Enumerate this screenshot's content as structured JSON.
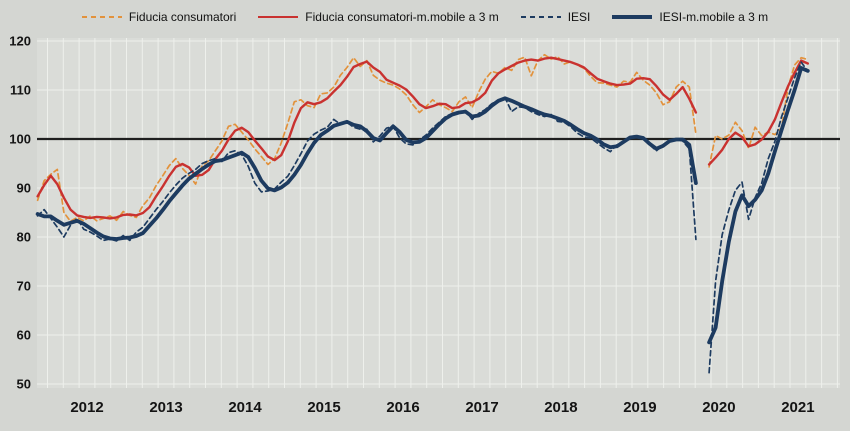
{
  "legend": {
    "items": [
      {
        "label": "Fiducia consumatori"
      },
      {
        "label": "Fiducia consumatori-m.mobile a 3 m"
      },
      {
        "label": "IESI"
      },
      {
        "label": "IESI-m.mobile a 3 m"
      }
    ]
  },
  "colors": {
    "background": "#d4d6d2",
    "plot_background": "#dadcd8",
    "gridline": "#eef0ec",
    "reference_line": "#1f1f1f",
    "tick_text": "#141414"
  },
  "chart_data": {
    "type": "line",
    "title": "",
    "xlabel": "",
    "ylabel": "",
    "x_start": {
      "year": 2011,
      "month": 11
    },
    "x_points_monthly": 118,
    "x_tick_labels": [
      "2012",
      "2013",
      "2014",
      "2015",
      "2016",
      "2017",
      "2018",
      "2019",
      "2020",
      "2021"
    ],
    "y_ticks": [
      50,
      60,
      70,
      80,
      90,
      100,
      110,
      120
    ],
    "ylim": [
      50,
      120
    ],
    "reference_line": 100,
    "grid": true,
    "legend_position": "top",
    "series": [
      {
        "name": "Fiducia consumatori",
        "color": "#e2923c",
        "style": "dashed",
        "width": 1.7,
        "values": [
          87.5,
          91.5,
          92.8,
          93.8,
          85.0,
          83.2,
          84.0,
          83.3,
          84.3,
          83.3,
          83.8,
          84.3,
          83.4,
          85.2,
          84.4,
          84.0,
          86.4,
          88.0,
          90.5,
          92.5,
          94.6,
          96.0,
          94.0,
          92.6,
          90.8,
          94.6,
          95.6,
          97.6,
          99.6,
          102.6,
          103.0,
          101.4,
          99.8,
          98.0,
          96.4,
          94.8,
          96.0,
          99.2,
          103.2,
          107.6,
          108.0,
          106.8,
          106.4,
          109.2,
          109.4,
          110.6,
          113.0,
          114.6,
          116.6,
          114.8,
          116.0,
          113.0,
          112.0,
          111.4,
          111.0,
          110.2,
          109.0,
          107.0,
          105.4,
          106.6,
          108.0,
          107.0,
          106.4,
          105.6,
          107.6,
          108.6,
          106.4,
          109.6,
          112.2,
          113.8,
          113.4,
          114.6,
          114.0,
          116.2,
          116.7,
          112.9,
          116.0,
          117.2,
          116.3,
          116.8,
          115.3,
          115.8,
          115.1,
          114.4,
          112.8,
          111.5,
          111.4,
          111.0,
          110.6,
          111.8,
          111.6,
          113.6,
          112.0,
          111.0,
          109.4,
          107.0,
          107.6,
          110.6,
          111.8,
          110.6,
          101.0,
          null,
          94.3,
          100.7,
          100.0,
          100.8,
          103.4,
          101.7,
          98.1,
          102.4,
          100.7,
          101.4,
          100.9,
          102.3,
          110.6,
          115.1,
          116.6,
          116.2
        ]
      },
      {
        "name": "Fiducia consumatori-m.mobile a 3 m",
        "color": "#c93230",
        "style": "solid",
        "width": 2.4,
        "values": [
          88.3,
          90.6,
          92.5,
          90.8,
          88.0,
          85.6,
          84.4,
          84.1,
          83.9,
          84.1,
          84.0,
          83.8,
          84.0,
          84.5,
          84.6,
          84.4,
          84.9,
          86.1,
          88.3,
          90.3,
          92.5,
          94.3,
          94.9,
          94.2,
          92.5,
          92.7,
          93.7,
          95.9,
          97.6,
          99.9,
          101.7,
          102.3,
          101.4,
          99.7,
          98.1,
          96.4,
          95.7,
          96.7,
          99.5,
          103.3,
          106.3,
          107.5,
          107.1,
          107.5,
          108.3,
          109.7,
          111.0,
          112.7,
          114.7,
          115.3,
          115.8,
          114.6,
          113.7,
          112.1,
          111.5,
          110.9,
          110.1,
          108.7,
          107.1,
          106.3,
          106.7,
          107.2,
          107.1,
          106.3,
          106.5,
          107.3,
          107.5,
          108.2,
          109.4,
          111.9,
          113.4,
          114.2,
          114.9,
          115.6,
          116.0,
          116.2,
          116.0,
          116.4,
          116.6,
          116.3,
          116.0,
          115.7,
          115.2,
          114.6,
          113.4,
          112.3,
          111.8,
          111.3,
          111.0,
          111.1,
          111.3,
          112.3,
          112.4,
          112.2,
          110.8,
          109.1,
          108.0,
          109.2,
          110.6,
          108.2,
          105.4,
          null,
          94.8,
          96.2,
          97.8,
          100.0,
          101.3,
          100.4,
          98.5,
          98.9,
          99.9,
          101.5,
          104.0,
          107.5,
          110.8,
          113.5,
          116.0,
          115.4
        ]
      },
      {
        "name": "IESI",
        "color": "#1d3b60",
        "style": "dashed",
        "width": 1.7,
        "values": [
          84.3,
          85.6,
          83.8,
          82.0,
          80.0,
          82.4,
          83.8,
          81.6,
          81.0,
          80.2,
          79.3,
          79.6,
          79.2,
          80.3,
          79.3,
          81.0,
          82.0,
          83.8,
          85.6,
          87.2,
          89.0,
          90.6,
          92.0,
          93.0,
          93.8,
          95.0,
          95.6,
          96.0,
          95.4,
          97.2,
          97.6,
          96.8,
          94.4,
          91.0,
          89.2,
          89.4,
          89.8,
          91.2,
          92.4,
          94.6,
          97.0,
          99.6,
          101.0,
          101.8,
          102.4,
          104.0,
          103.0,
          103.4,
          102.4,
          102.0,
          102.0,
          99.4,
          100.6,
          102.2,
          102.6,
          100.2,
          99.0,
          98.8,
          99.8,
          100.8,
          102.2,
          103.4,
          104.6,
          105.2,
          105.6,
          105.8,
          104.0,
          105.2,
          106.0,
          107.2,
          107.9,
          108.4,
          105.6,
          106.6,
          106.4,
          105.6,
          105.0,
          104.6,
          105.0,
          103.6,
          103.4,
          102.5,
          101.2,
          100.4,
          100.2,
          99.2,
          98.2,
          97.4,
          98.8,
          99.6,
          100.2,
          100.4,
          100.0,
          98.8,
          97.6,
          98.8,
          99.6,
          100.0,
          99.6,
          98.0,
          79.5,
          null,
          52.3,
          71.0,
          80.5,
          85.5,
          89.5,
          91.2,
          83.6,
          88.0,
          91.0,
          96.0,
          99.5,
          104.5,
          108.5,
          112.5,
          115.7,
          113.8
        ]
      },
      {
        "name": "IESI-m.mobile a 3 m",
        "color": "#1d3b60",
        "style": "solid",
        "width": 3.8,
        "values": [
          84.7,
          84.2,
          84.2,
          83.3,
          82.5,
          82.9,
          83.3,
          82.7,
          81.8,
          80.9,
          80.1,
          79.7,
          79.6,
          79.8,
          79.9,
          80.2,
          80.8,
          82.3,
          83.8,
          85.5,
          87.3,
          88.9,
          90.5,
          91.9,
          92.9,
          93.9,
          94.8,
          95.5,
          95.7,
          96.2,
          96.7,
          97.2,
          96.3,
          94.1,
          91.5,
          89.9,
          89.5,
          90.1,
          91.1,
          92.7,
          94.7,
          97.1,
          99.2,
          100.8,
          101.7,
          102.7,
          103.1,
          103.5,
          102.9,
          102.6,
          101.6,
          100.2,
          99.7,
          101.2,
          102.6,
          101.4,
          99.8,
          99.3,
          99.4,
          100.2,
          101.6,
          103.0,
          104.2,
          105.0,
          105.4,
          105.6,
          104.6,
          104.8,
          105.6,
          106.8,
          107.8,
          108.3,
          107.8,
          107.2,
          106.6,
          106.1,
          105.5,
          105.0,
          104.7,
          104.2,
          103.7,
          102.9,
          102.0,
          101.2,
          100.7,
          99.9,
          98.9,
          98.3,
          98.5,
          99.4,
          100.3,
          100.5,
          100.2,
          99.0,
          98.0,
          98.6,
          99.6,
          99.9,
          99.9,
          98.8,
          91.0,
          null,
          58.5,
          61.5,
          71.0,
          79.0,
          85.2,
          88.5,
          86.3,
          87.6,
          89.5,
          93.0,
          97.5,
          101.8,
          106.0,
          110.0,
          114.5,
          113.9
        ]
      }
    ]
  }
}
